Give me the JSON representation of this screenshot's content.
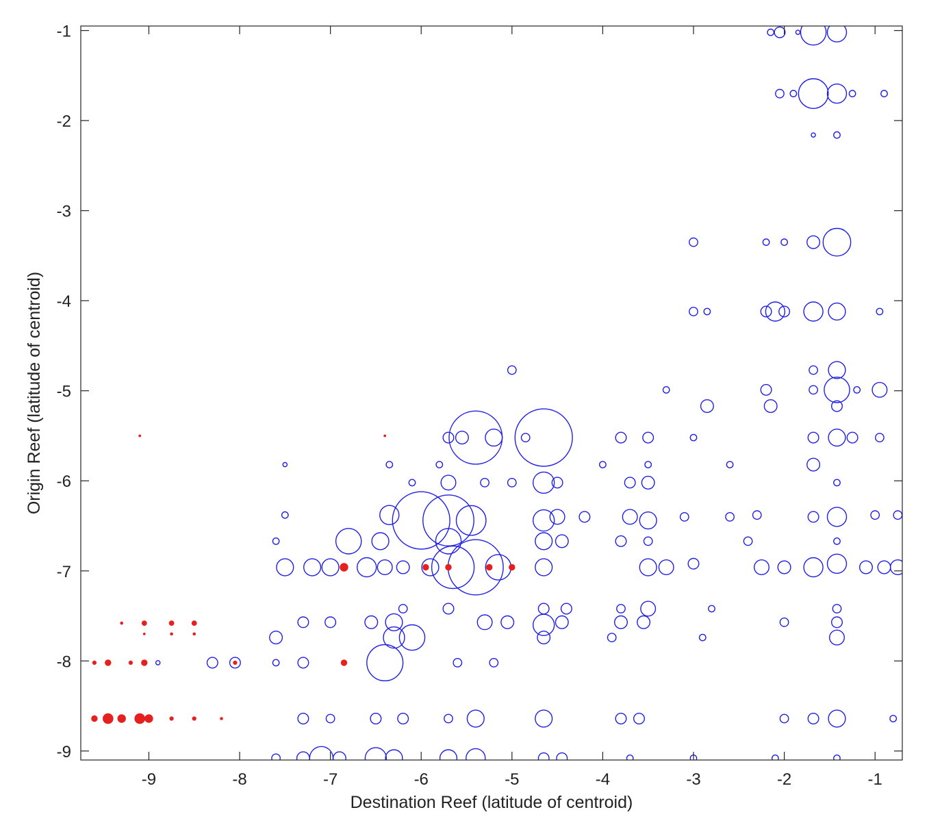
{
  "chart_data": {
    "type": "scatter",
    "title": "",
    "xlabel": "Destination Reef (latitude of centroid)",
    "ylabel": "Origin Reef (latitude of centroid)",
    "xlim": [
      -9.75,
      -0.7
    ],
    "ylim": [
      -9.1,
      -0.95
    ],
    "x_reversed": false,
    "y_direction": "top-to-bottom from -1 to -9",
    "x_ticks": [
      -9,
      -8,
      -7,
      -6,
      -5,
      -4,
      -3,
      -2,
      -1
    ],
    "x_tick_labels": [
      "-9",
      "-8",
      "-7",
      "-6",
      "-5",
      "-4",
      "-3",
      "-2",
      "-1"
    ],
    "y_ticks": [
      -1,
      -2,
      -3,
      -4,
      -5,
      -6,
      -7,
      -8,
      -9
    ],
    "y_tick_labels": [
      "-1",
      "-2",
      "-3",
      "-4",
      "-5",
      "-6",
      "-7",
      "-8",
      "-9"
    ],
    "grid": false,
    "marker_size_meaning": "relative connection strength (unitless circle size)",
    "colors": {
      "blue_series": "#1f1fe6",
      "red_series": "#e61f1f",
      "axis": "#222222"
    },
    "series": [
      {
        "color": "#1f1fe6",
        "marker": "open-circle",
        "points": [
          [
            -1.68,
            -1.02,
            12
          ],
          [
            -1.42,
            -1.02,
            9
          ],
          [
            -2.05,
            -1.02,
            5
          ],
          [
            -2.15,
            -1.02,
            3
          ],
          [
            -1.85,
            -1.02,
            2
          ],
          [
            -1.68,
            -1.7,
            14
          ],
          [
            -1.42,
            -1.7,
            9
          ],
          [
            -2.05,
            -1.7,
            4
          ],
          [
            -1.9,
            -1.7,
            3
          ],
          [
            -1.25,
            -1.7,
            3
          ],
          [
            -0.9,
            -1.7,
            3
          ],
          [
            -1.68,
            -2.16,
            2
          ],
          [
            -1.42,
            -2.16,
            3
          ],
          [
            -1.42,
            -3.35,
            13
          ],
          [
            -1.68,
            -3.35,
            6
          ],
          [
            -2.0,
            -3.35,
            3
          ],
          [
            -3.0,
            -3.35,
            4
          ],
          [
            -2.2,
            -3.35,
            3
          ],
          [
            -1.68,
            -4.12,
            9
          ],
          [
            -1.42,
            -4.12,
            8
          ],
          [
            -2.1,
            -4.12,
            9
          ],
          [
            -2.0,
            -4.12,
            5
          ],
          [
            -2.2,
            -4.12,
            5
          ],
          [
            -3.0,
            -4.12,
            4
          ],
          [
            -2.85,
            -4.12,
            3
          ],
          [
            -0.95,
            -4.12,
            3
          ],
          [
            -1.42,
            -4.77,
            8
          ],
          [
            -1.68,
            -4.77,
            4
          ],
          [
            -5.0,
            -4.77,
            4
          ],
          [
            -1.42,
            -4.99,
            12
          ],
          [
            -0.95,
            -4.99,
            7
          ],
          [
            -2.2,
            -4.99,
            5
          ],
          [
            -1.68,
            -4.99,
            4
          ],
          [
            -1.2,
            -4.99,
            3
          ],
          [
            -3.3,
            -4.99,
            3
          ],
          [
            -1.42,
            -5.17,
            5
          ],
          [
            -2.15,
            -5.17,
            6
          ],
          [
            -2.85,
            -5.17,
            6
          ],
          [
            -5.4,
            -5.52,
            25
          ],
          [
            -4.65,
            -5.52,
            27
          ],
          [
            -5.2,
            -5.52,
            8
          ],
          [
            -5.55,
            -5.52,
            6
          ],
          [
            -5.7,
            -5.52,
            5
          ],
          [
            -3.8,
            -5.52,
            5
          ],
          [
            -3.5,
            -5.52,
            5
          ],
          [
            -1.42,
            -5.52,
            8
          ],
          [
            -1.68,
            -5.52,
            5
          ],
          [
            -1.25,
            -5.52,
            5
          ],
          [
            -0.95,
            -5.52,
            4
          ],
          [
            -3.0,
            -5.52,
            3
          ],
          [
            -4.85,
            -5.52,
            4
          ],
          [
            -1.68,
            -5.82,
            6
          ],
          [
            -2.6,
            -5.82,
            3
          ],
          [
            -3.5,
            -5.82,
            3
          ],
          [
            -4.0,
            -5.82,
            3
          ],
          [
            -5.8,
            -5.82,
            3
          ],
          [
            -7.5,
            -5.82,
            2
          ],
          [
            -6.35,
            -5.82,
            3
          ],
          [
            -4.65,
            -6.02,
            10
          ],
          [
            -5.7,
            -6.02,
            7
          ],
          [
            -3.5,
            -6.02,
            6
          ],
          [
            -3.7,
            -6.02,
            5
          ],
          [
            -4.5,
            -6.02,
            5
          ],
          [
            -5.0,
            -6.02,
            4
          ],
          [
            -6.1,
            -6.02,
            3
          ],
          [
            -5.3,
            -6.02,
            4
          ],
          [
            -1.42,
            -6.02,
            3
          ],
          [
            -6.0,
            -6.44,
            27
          ],
          [
            -5.7,
            -6.44,
            24
          ],
          [
            -5.45,
            -6.44,
            14
          ],
          [
            -6.35,
            -6.38,
            9
          ],
          [
            -4.65,
            -6.44,
            10
          ],
          [
            -4.5,
            -6.4,
            7
          ],
          [
            -3.7,
            -6.4,
            7
          ],
          [
            -3.5,
            -6.44,
            8
          ],
          [
            -1.42,
            -6.4,
            9
          ],
          [
            -1.68,
            -6.4,
            5
          ],
          [
            -0.75,
            -6.38,
            4
          ],
          [
            -7.5,
            -6.38,
            3
          ],
          [
            -2.3,
            -6.38,
            4
          ],
          [
            -4.2,
            -6.4,
            5
          ],
          [
            -3.1,
            -6.4,
            4
          ],
          [
            -2.6,
            -6.4,
            4
          ],
          [
            -1.0,
            -6.38,
            4
          ],
          [
            -6.8,
            -6.67,
            12
          ],
          [
            -6.45,
            -6.67,
            8
          ],
          [
            -5.7,
            -6.67,
            12
          ],
          [
            -4.65,
            -6.67,
            8
          ],
          [
            -4.45,
            -6.67,
            6
          ],
          [
            -3.8,
            -6.67,
            5
          ],
          [
            -3.5,
            -6.67,
            4
          ],
          [
            -2.4,
            -6.67,
            4
          ],
          [
            -7.6,
            -6.67,
            3
          ],
          [
            -1.42,
            -6.67,
            3
          ],
          [
            -5.4,
            -6.96,
            26
          ],
          [
            -5.65,
            -6.96,
            20
          ],
          [
            -5.15,
            -6.96,
            12
          ],
          [
            -7.5,
            -6.96,
            8
          ],
          [
            -7.2,
            -6.96,
            8
          ],
          [
            -7.0,
            -6.96,
            8
          ],
          [
            -6.6,
            -6.96,
            9
          ],
          [
            -6.4,
            -6.96,
            7
          ],
          [
            -6.2,
            -6.96,
            6
          ],
          [
            -5.9,
            -6.96,
            8
          ],
          [
            -4.65,
            -6.96,
            8
          ],
          [
            -3.5,
            -6.96,
            8
          ],
          [
            -3.3,
            -6.96,
            7
          ],
          [
            -2.25,
            -6.96,
            7
          ],
          [
            -2.0,
            -6.96,
            6
          ],
          [
            -1.68,
            -6.96,
            9
          ],
          [
            -1.42,
            -6.92,
            9
          ],
          [
            -1.1,
            -6.96,
            6
          ],
          [
            -0.9,
            -6.96,
            6
          ],
          [
            -0.75,
            -6.96,
            7
          ],
          [
            -3.0,
            -6.92,
            5
          ],
          [
            -3.5,
            -7.42,
            7
          ],
          [
            -5.7,
            -7.42,
            5
          ],
          [
            -4.65,
            -7.42,
            5
          ],
          [
            -4.4,
            -7.42,
            5
          ],
          [
            -6.2,
            -7.42,
            4
          ],
          [
            -3.8,
            -7.42,
            4
          ],
          [
            -1.42,
            -7.42,
            4
          ],
          [
            -2.8,
            -7.42,
            3
          ],
          [
            -6.3,
            -7.57,
            8
          ],
          [
            -5.3,
            -7.57,
            7
          ],
          [
            -5.05,
            -7.57,
            6
          ],
          [
            -4.65,
            -7.6,
            10
          ],
          [
            -4.45,
            -7.57,
            6
          ],
          [
            -6.55,
            -7.57,
            6
          ],
          [
            -7.0,
            -7.57,
            5
          ],
          [
            -3.8,
            -7.57,
            6
          ],
          [
            -3.55,
            -7.57,
            6
          ],
          [
            -2.0,
            -7.57,
            4
          ],
          [
            -1.42,
            -7.57,
            5
          ],
          [
            -7.3,
            -7.57,
            5
          ],
          [
            -6.3,
            -7.74,
            10
          ],
          [
            -6.1,
            -7.74,
            12
          ],
          [
            -7.6,
            -7.74,
            6
          ],
          [
            -4.65,
            -7.74,
            6
          ],
          [
            -3.9,
            -7.74,
            4
          ],
          [
            -1.42,
            -7.74,
            7
          ],
          [
            -2.9,
            -7.74,
            3
          ],
          [
            -6.4,
            -8.02,
            17
          ],
          [
            -8.3,
            -8.02,
            5
          ],
          [
            -8.05,
            -8.02,
            5
          ],
          [
            -7.3,
            -8.02,
            5
          ],
          [
            -7.6,
            -8.02,
            3
          ],
          [
            -5.6,
            -8.02,
            4
          ],
          [
            -5.2,
            -8.02,
            4
          ],
          [
            -8.9,
            -8.02,
            2
          ],
          [
            -5.4,
            -8.64,
            8
          ],
          [
            -4.65,
            -8.64,
            8
          ],
          [
            -6.2,
            -8.64,
            5
          ],
          [
            -6.5,
            -8.64,
            5
          ],
          [
            -7.3,
            -8.64,
            5
          ],
          [
            -7.0,
            -8.64,
            4
          ],
          [
            -5.7,
            -8.64,
            4
          ],
          [
            -3.8,
            -8.64,
            5
          ],
          [
            -3.6,
            -8.64,
            5
          ],
          [
            -1.42,
            -8.64,
            8
          ],
          [
            -1.68,
            -8.64,
            5
          ],
          [
            -2.0,
            -8.64,
            4
          ],
          [
            -0.8,
            -8.64,
            3
          ],
          [
            -7.1,
            -9.08,
            11
          ],
          [
            -6.5,
            -9.08,
            10
          ],
          [
            -6.3,
            -9.08,
            8
          ],
          [
            -5.4,
            -9.08,
            9
          ],
          [
            -5.7,
            -9.08,
            8
          ],
          [
            -7.3,
            -9.08,
            6
          ],
          [
            -6.9,
            -9.08,
            6
          ],
          [
            -4.65,
            -9.08,
            5
          ],
          [
            -4.45,
            -9.08,
            5
          ],
          [
            -7.6,
            -9.08,
            4
          ],
          [
            -3.7,
            -9.08,
            3
          ],
          [
            -3.0,
            -9.08,
            3
          ],
          [
            -1.42,
            -9.08,
            3
          ],
          [
            -2.1,
            -9.08,
            3
          ]
        ]
      },
      {
        "color": "#e61f1f",
        "marker": "filled-dot",
        "points": [
          [
            -9.45,
            -8.64,
            5
          ],
          [
            -9.1,
            -8.64,
            5
          ],
          [
            -9.3,
            -8.64,
            4
          ],
          [
            -9.6,
            -8.64,
            3
          ],
          [
            -9.0,
            -8.64,
            4
          ],
          [
            -8.75,
            -8.64,
            2
          ],
          [
            -8.5,
            -8.64,
            2
          ],
          [
            -8.2,
            -8.64,
            1.5
          ],
          [
            -9.45,
            -8.02,
            3
          ],
          [
            -9.05,
            -8.02,
            3
          ],
          [
            -9.2,
            -8.02,
            2
          ],
          [
            -9.6,
            -8.02,
            2
          ],
          [
            -6.85,
            -8.02,
            3
          ],
          [
            -8.05,
            -8.02,
            2
          ],
          [
            -6.85,
            -6.96,
            4
          ],
          [
            -5.95,
            -6.96,
            3
          ],
          [
            -5.7,
            -6.96,
            3
          ],
          [
            -5.25,
            -6.96,
            3
          ],
          [
            -5.0,
            -6.96,
            3
          ],
          [
            -9.05,
            -7.58,
            2.5
          ],
          [
            -8.75,
            -7.58,
            2.5
          ],
          [
            -8.5,
            -7.58,
            2.5
          ],
          [
            -9.3,
            -7.58,
            1.5
          ],
          [
            -8.75,
            -7.7,
            1.5
          ],
          [
            -8.5,
            -7.7,
            1.5
          ],
          [
            -9.05,
            -7.7,
            1.2
          ],
          [
            -9.1,
            -5.5,
            1.2
          ],
          [
            -6.4,
            -5.5,
            1.2
          ]
        ]
      }
    ]
  }
}
